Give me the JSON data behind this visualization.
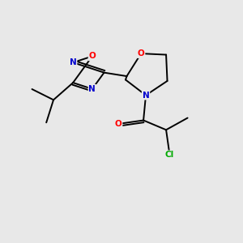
{
  "background_color": "#e8e8e8",
  "bond_color": "#000000",
  "atom_colors": {
    "O": "#ff0000",
    "N": "#0000cd",
    "Cl": "#00aa00",
    "C": "#000000"
  },
  "figsize": [
    3.0,
    3.0
  ],
  "dpi": 100,
  "xlim": [
    0,
    10
  ],
  "ylim": [
    0,
    10
  ],
  "lw": 1.4,
  "fs": 7.5
}
